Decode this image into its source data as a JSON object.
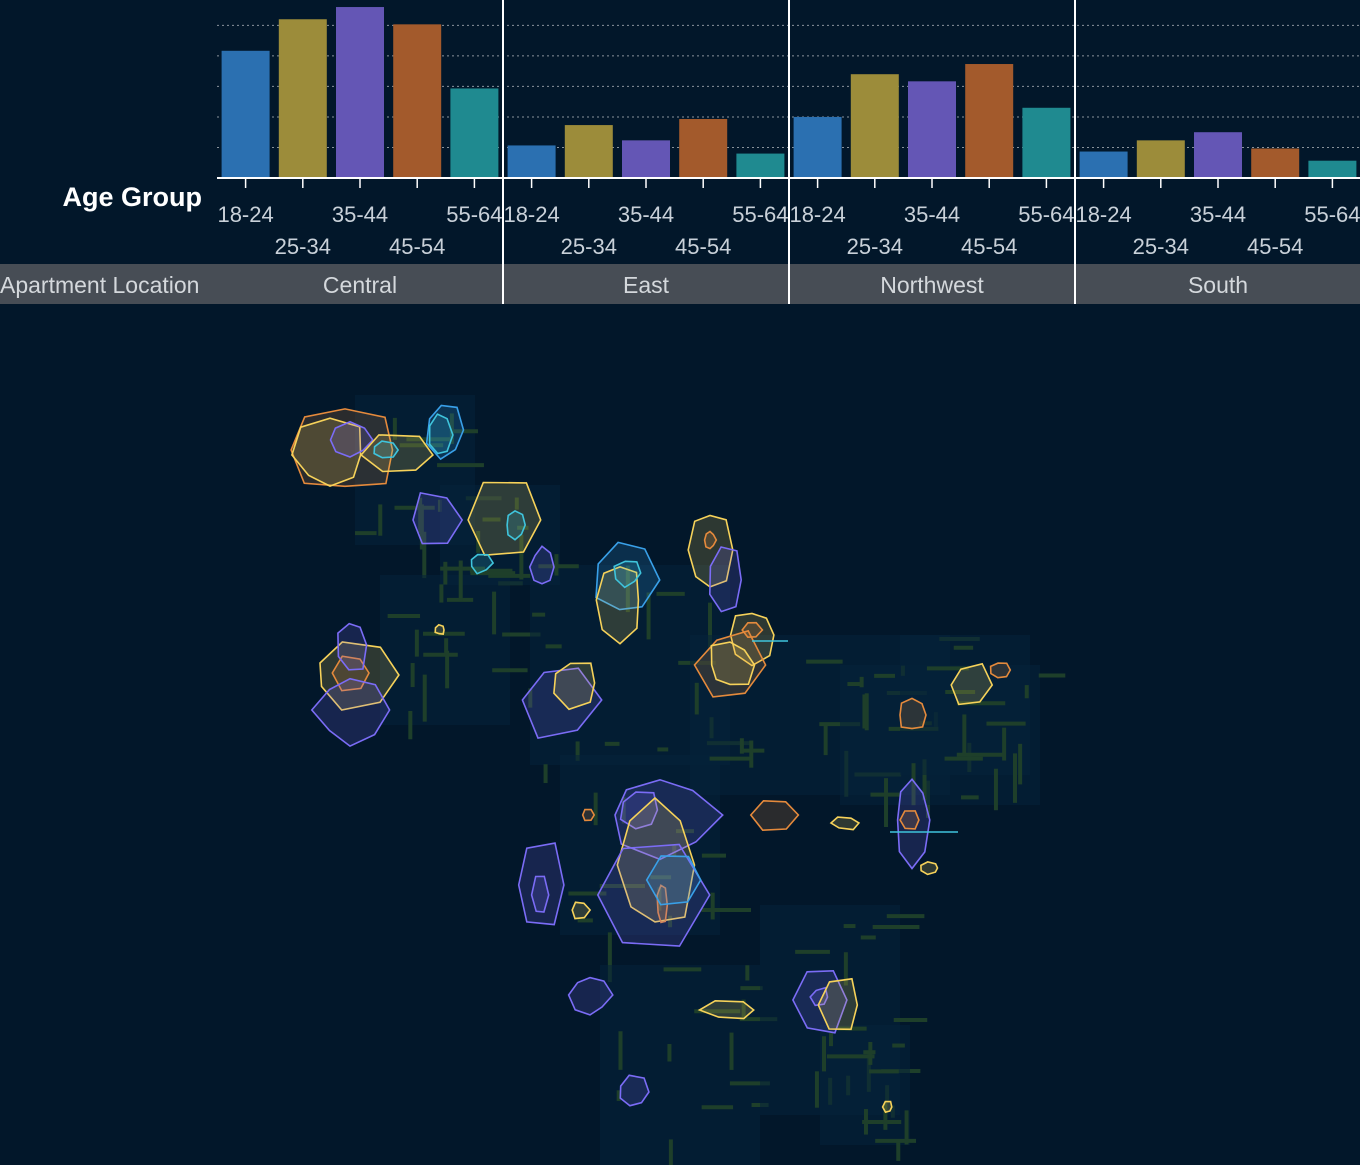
{
  "chart_data": [
    {
      "type": "bar",
      "xlabel": "Age Group",
      "facet_label": "Apartment Location",
      "categories": [
        "18-24",
        "25-34",
        "35-44",
        "45-54",
        "55-64"
      ],
      "facets": [
        {
          "name": "Central",
          "values": [
            125,
            156,
            168,
            151,
            88
          ]
        },
        {
          "name": "East",
          "values": [
            32,
            52,
            37,
            58,
            24
          ]
        },
        {
          "name": "Northwest",
          "values": [
            60,
            102,
            95,
            112,
            69
          ]
        },
        {
          "name": "South",
          "values": [
            26,
            37,
            45,
            29,
            17
          ]
        }
      ],
      "colors": [
        "#2b70b1",
        "#9c8c3a",
        "#6456b5",
        "#a35a2c",
        "#1f8a90"
      ],
      "ylim": [
        0,
        170
      ],
      "grid": "horizontal-dotted",
      "axis_color": "#ffffff",
      "tick_label_color": "#c9d1d9",
      "strip_color": "#474d55",
      "background": "#02172a"
    },
    {
      "type": "density-contour-map",
      "series_colors": [
        "#7b6cf6",
        "#f6d25a",
        "#e58a3c",
        "#3fc4dc",
        "#39a0e8"
      ],
      "map_color": "#1e3f2a"
    }
  ]
}
